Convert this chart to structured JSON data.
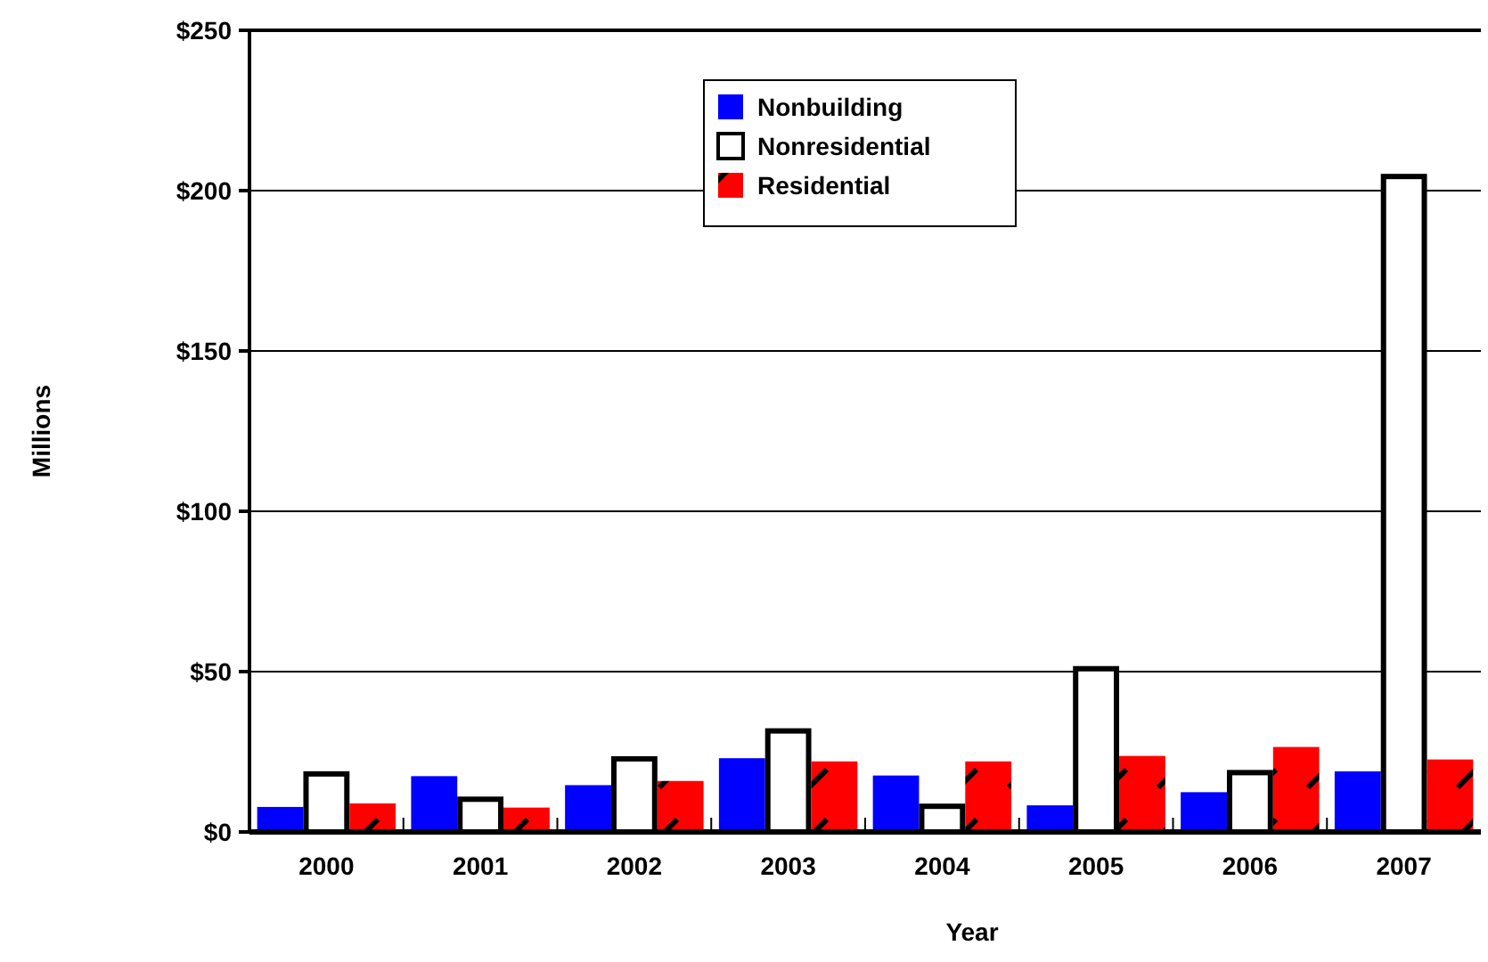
{
  "chart_data": {
    "type": "bar",
    "xlabel": "Year",
    "ylabel": "Millions",
    "categories": [
      "2000",
      "2001",
      "2002",
      "2003",
      "2004",
      "2005",
      "2006",
      "2007"
    ],
    "series": [
      {
        "name": "Nonbuilding",
        "color": "#0000ff",
        "values": [
          7.8,
          17.4,
          14.6,
          23,
          17.6,
          8.3,
          12.4,
          18.9
        ]
      },
      {
        "name": "Nonresidential",
        "color": "#ffffff",
        "values": [
          18.1,
          10.2,
          22.8,
          31.5,
          8,
          50.9,
          18.5,
          204.4
        ]
      },
      {
        "name": "Residential",
        "color": "#ff0000",
        "values": [
          8.9,
          7.6,
          15.9,
          22,
          22,
          23.7,
          26.5,
          22.6
        ]
      }
    ],
    "ylim": [
      0,
      250
    ],
    "yticks": [
      {
        "value": 0,
        "label": "$0"
      },
      {
        "value": 50,
        "label": "$50"
      },
      {
        "value": 100,
        "label": "$100"
      },
      {
        "value": 150,
        "label": "$150"
      },
      {
        "value": 200,
        "label": "$200"
      },
      {
        "value": 250,
        "label": "$250"
      }
    ],
    "grid": "y",
    "legend": "top"
  }
}
